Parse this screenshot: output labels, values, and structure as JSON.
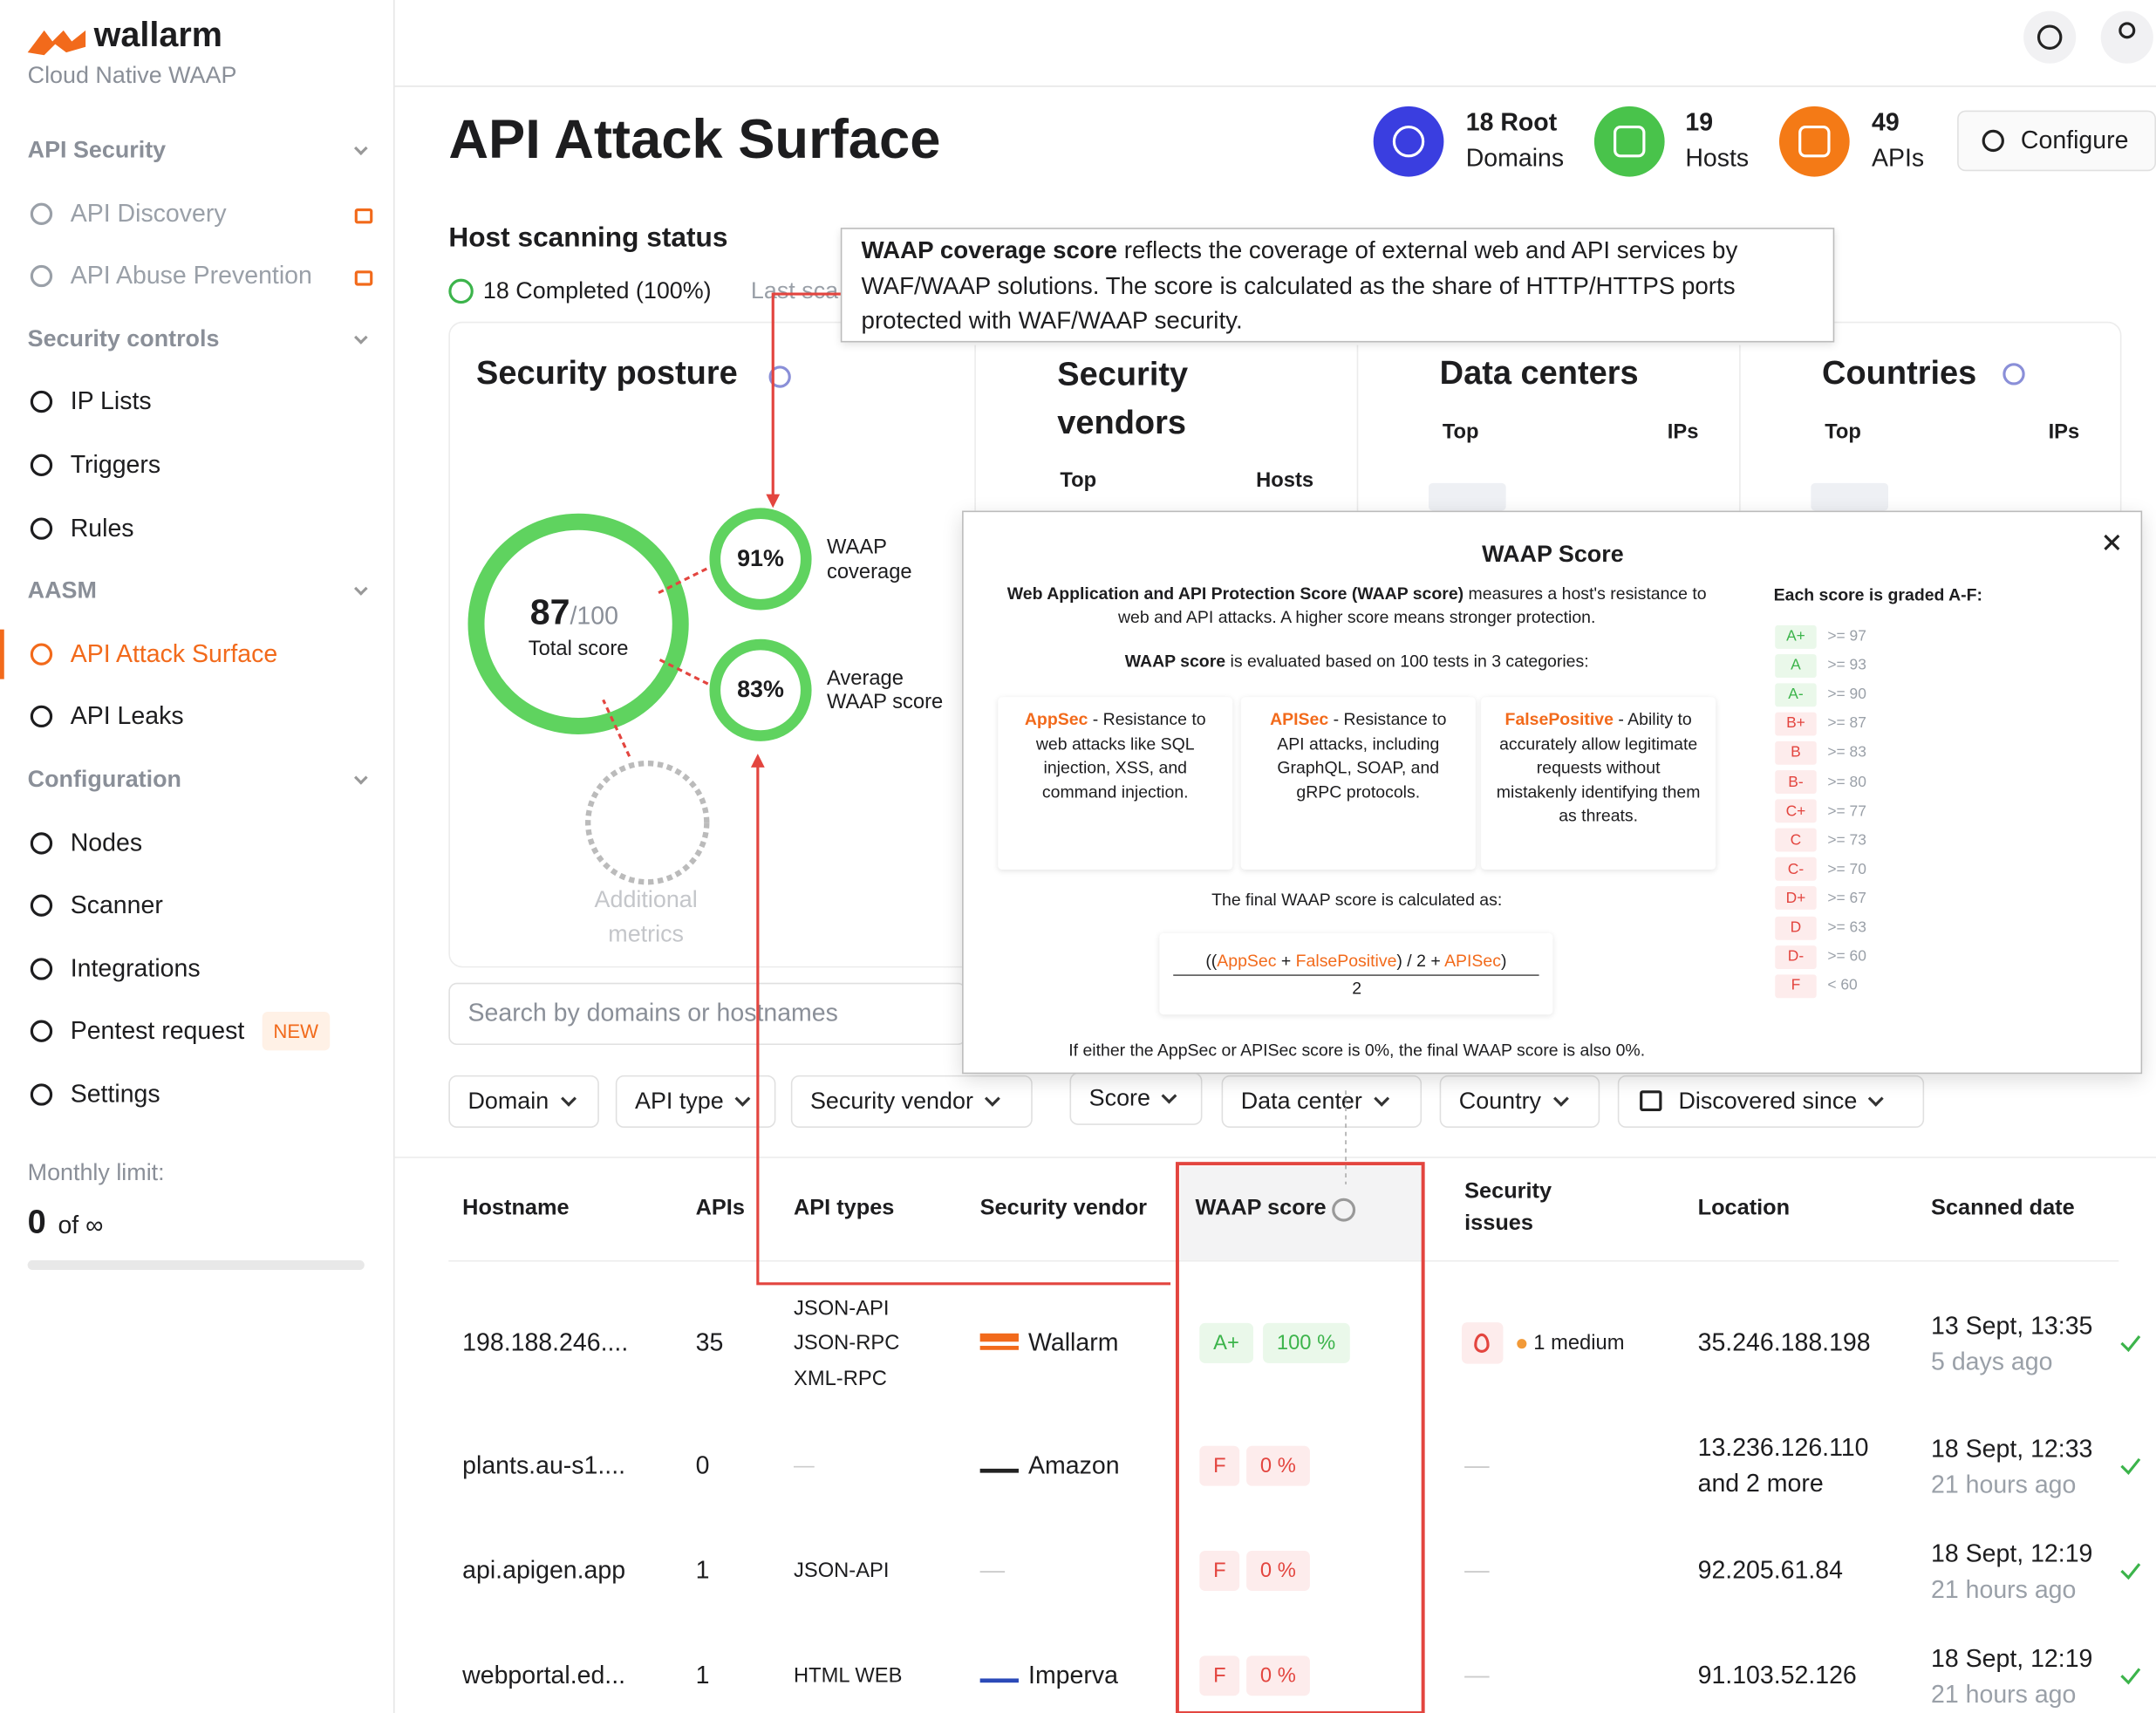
{
  "sidebar": {
    "brand": "wallarm",
    "subtitle": "Cloud Native WAAP",
    "sections": [
      {
        "title": "API Security",
        "items": [
          {
            "label": "API Discovery",
            "locked": true
          },
          {
            "label": "API Abuse Prevention",
            "locked": true
          }
        ]
      },
      {
        "title": "Security controls",
        "items": [
          {
            "label": "IP Lists"
          },
          {
            "label": "Triggers"
          },
          {
            "label": "Rules"
          }
        ]
      },
      {
        "title": "AASM",
        "items": [
          {
            "label": "API Attack Surface",
            "active": true
          },
          {
            "label": "API Leaks"
          }
        ]
      },
      {
        "title": "Configuration",
        "items": [
          {
            "label": "Nodes"
          },
          {
            "label": "Scanner"
          },
          {
            "label": "Integrations"
          },
          {
            "label": "Pentest request",
            "badge": "NEW"
          },
          {
            "label": "Settings"
          }
        ]
      }
    ],
    "monthly_limit_label": "Monthly limit:",
    "monthly_limit_value": "0",
    "monthly_limit_of": "of ∞"
  },
  "header": {
    "title": "API Attack Surface",
    "stats": [
      {
        "value": "18 Root",
        "label": "Domains"
      },
      {
        "value": "19",
        "label": "Hosts"
      },
      {
        "value": "49",
        "label": "APIs"
      }
    ],
    "configure": "Configure"
  },
  "scanning": {
    "title": "Host scanning status",
    "completed": "18 Completed (100%)",
    "last": "Last sca"
  },
  "tooltip": {
    "bold": "WAAP coverage score",
    "text": " reflects the coverage of external web and API services by WAF/WAAP solutions. The score is calculated as the share of HTTP/HTTPS ports protected with WAF/WAAP security."
  },
  "posture": {
    "title": "Security posture",
    "total": "87",
    "total_max": "/100",
    "total_label": "Total score",
    "coverage": "91%",
    "coverage_label": "WAAP coverage",
    "average": "83%",
    "average_label": "Average WAAP score",
    "additional": "Additional metrics"
  },
  "cards": [
    {
      "title": "Security vendors",
      "top": "Top",
      "col": "Hosts"
    },
    {
      "title": "Data centers",
      "top": "Top",
      "col": "IPs"
    },
    {
      "title": "Countries",
      "top": "Top",
      "col": "IPs"
    }
  ],
  "search_placeholder": "Search by domains or hostnames",
  "filters": [
    "Domain",
    "API type",
    "Security vendor",
    "Score",
    "Data center",
    "Country",
    "Discovered since"
  ],
  "modal": {
    "title": "WAAP Score",
    "intro_bold": "Web Application and API Protection Score (WAAP score)",
    "intro": " measures a host's resistance to web and API attacks. A higher score means stronger protection.",
    "eval_bold": "WAAP score",
    "eval": " is evaluated based on 100 tests in 3 categories:",
    "categories": [
      {
        "name": "AppSec",
        "text": " - Resistance to web attacks like SQL injection, XSS, and command injection."
      },
      {
        "name": "APISec",
        "text": " - Resistance to API attacks, including GraphQL, SOAP, and gRPC protocols."
      },
      {
        "name": "FalsePositive",
        "text": " - Ability to accurately allow legitimate requests without mistakenly identifying them as threats."
      }
    ],
    "formula_label": "The final WAAP score is calculated as:",
    "formula": [
      "((",
      "AppSec",
      " + ",
      "FalsePositive",
      ") / 2 + ",
      "APISec",
      ")"
    ],
    "denominator": "2",
    "footnote": "If either the AppSec or APISec score is 0%, the final WAAP score is also 0%.",
    "grades_title": "Each score is graded A-F:",
    "grades": [
      {
        "grade": "A+",
        "threshold": ">= 97"
      },
      {
        "grade": "A",
        "threshold": ">= 93"
      },
      {
        "grade": "A-",
        "threshold": ">= 90"
      },
      {
        "grade": "B+",
        "threshold": ">= 87"
      },
      {
        "grade": "B",
        "threshold": ">= 83"
      },
      {
        "grade": "B-",
        "threshold": ">= 80"
      },
      {
        "grade": "C+",
        "threshold": ">= 77"
      },
      {
        "grade": "C",
        "threshold": ">= 73"
      },
      {
        "grade": "C-",
        "threshold": ">= 70"
      },
      {
        "grade": "D+",
        "threshold": ">= 67"
      },
      {
        "grade": "D",
        "threshold": ">= 63"
      },
      {
        "grade": "D-",
        "threshold": ">= 60"
      },
      {
        "grade": "F",
        "threshold": "< 60"
      }
    ]
  },
  "table": {
    "headers": [
      "Hostname",
      "APIs",
      "API types",
      "Security vendor",
      "WAAP score",
      "Security issues",
      "Location",
      "Scanned date"
    ],
    "rows": [
      {
        "hostname": "198.188.246....",
        "apis": "35",
        "api_types": [
          "JSON-API",
          "JSON-RPC",
          "XML-RPC"
        ],
        "vendor": "Wallarm",
        "grade": "A+",
        "score": "100 %",
        "issues": "1 medium",
        "location": [
          "35.246.188.198"
        ],
        "scanned": "13 Sept, 13:35",
        "ago": "5 days ago"
      },
      {
        "hostname": "plants.au-s1....",
        "apis": "0",
        "api_types": [
          "—"
        ],
        "vendor": "Amazon",
        "grade": "F",
        "score": "0 %",
        "issues": "—",
        "location": [
          "13.236.126.110",
          "and 2 more"
        ],
        "scanned": "18 Sept, 12:33",
        "ago": "21 hours ago"
      },
      {
        "hostname": "api.apigen.app",
        "apis": "1",
        "api_types": [
          "JSON-API"
        ],
        "vendor": "—",
        "grade": "F",
        "score": "0 %",
        "issues": "—",
        "location": [
          "92.205.61.84"
        ],
        "scanned": "18 Sept, 12:19",
        "ago": "21 hours ago"
      },
      {
        "hostname": "webportal.ed...",
        "apis": "1",
        "api_types": [
          "HTML WEB"
        ],
        "vendor": "Imperva",
        "grade": "F",
        "score": "0 %",
        "issues": "—",
        "location": [
          "91.103.52.126"
        ],
        "scanned": "18 Sept, 12:19",
        "ago": "21 hours ago"
      }
    ]
  }
}
